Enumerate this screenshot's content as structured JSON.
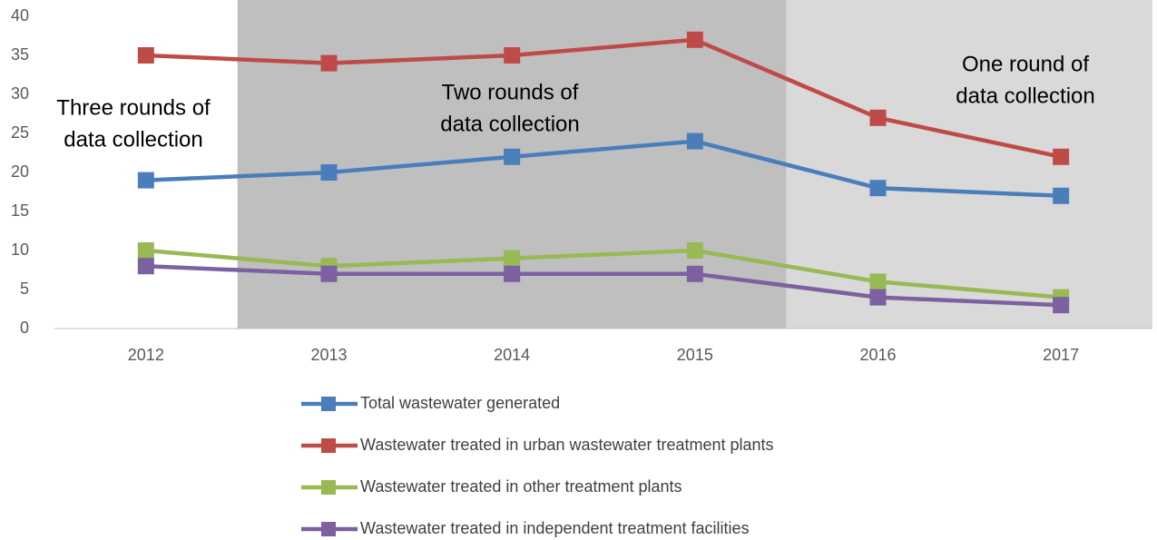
{
  "chart_data": {
    "type": "line",
    "categories": [
      "2012",
      "2013",
      "2014",
      "2015",
      "2016",
      "2017"
    ],
    "series": [
      {
        "name": "Total wastewater generated",
        "color": "#4a7ebb",
        "values": [
          19,
          20,
          22,
          24,
          18,
          17
        ]
      },
      {
        "name": "Wastewater treated in urban wastewater treatment plants",
        "color": "#be4b48",
        "values": [
          35,
          34,
          35,
          37,
          27,
          22
        ]
      },
      {
        "name": "Wastewater treated in other treatment plants",
        "color": "#98b954",
        "values": [
          10,
          8,
          9,
          10,
          6,
          4
        ]
      },
      {
        "name": "Wastewater treated in independent treatment facilities",
        "color": "#7d60a0",
        "values": [
          8,
          7,
          7,
          7,
          4,
          3
        ]
      }
    ],
    "ylim": [
      0,
      40
    ],
    "yticks": [
      0,
      5,
      10,
      15,
      20,
      25,
      30,
      35,
      40
    ],
    "grid": false,
    "legend": "bottom",
    "annotations": [
      {
        "lines": [
          "Three rounds of",
          "data collection"
        ],
        "from": "2012",
        "to": "2012",
        "shade": null
      },
      {
        "lines": [
          "Two rounds of",
          "data collection"
        ],
        "from": "2013",
        "to": "2015",
        "shade": "#bfbfbf"
      },
      {
        "lines": [
          "One round of",
          "data collection"
        ],
        "from": "2016",
        "to": "2017",
        "shade": "#d9d9d9"
      }
    ]
  }
}
